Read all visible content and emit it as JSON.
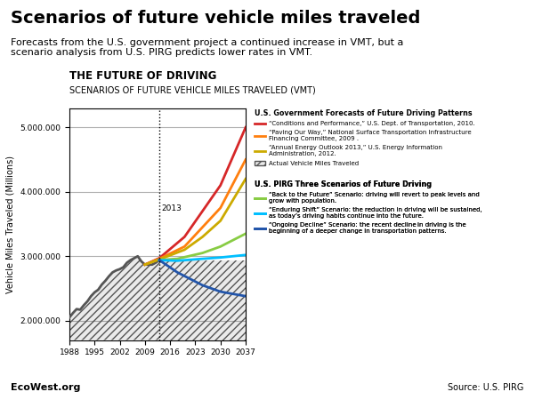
{
  "chart_data": {
    "type": "line",
    "title": "Scenarios of future vehicle miles traveled",
    "subtitle": "Forecasts from the U.S. government project a continued increase in VMT, but a\nscenario analysis from U.S. PIRG predicts lower rates in VMT.",
    "chart_title": "THE FUTURE OF DRIVING",
    "chart_subtitle": "SCENARIOS OF FUTURE VEHICLE MILES TRAVELED (VMT)",
    "y_label": "Vehicle Miles Traveled (Millions)",
    "footer_left": "EcoWest.org",
    "footer_right": "Source: U.S. PIRG",
    "xlim": [
      1988,
      2037
    ],
    "xticks": [
      1988,
      1995,
      2002,
      2009,
      2016,
      2023,
      2030,
      2037
    ],
    "ylim": [
      1700000,
      5300000
    ],
    "yticks": [
      {
        "value": 2000000,
        "label": "2.000.000"
      },
      {
        "value": 3000000,
        "label": "3.000.000"
      },
      {
        "value": 4000000,
        "label": "4.000.000"
      },
      {
        "value": 5000000,
        "label": "5.000.000"
      }
    ],
    "grid": "y",
    "series": [
      {
        "name": "Actual Vehicle Miles Traveled",
        "type": "area",
        "color": "#555555",
        "line_style": "solid",
        "x": [
          1988,
          1989,
          1990,
          1991,
          1992,
          1993,
          1994,
          1995,
          1996,
          1997,
          1998,
          1999,
          2000,
          2001,
          2002,
          2003,
          2004,
          2005,
          2006,
          2007,
          2008,
          2009,
          2010,
          2011,
          2012,
          2013
        ],
        "values": [
          2050000,
          2120000,
          2180000,
          2170000,
          2240000,
          2300000,
          2380000,
          2440000,
          2480000,
          2560000,
          2620000,
          2690000,
          2750000,
          2780000,
          2800000,
          2830000,
          2900000,
          2940000,
          2970000,
          3000000,
          2920000,
          2870000,
          2870000,
          2870000,
          2900000,
          2940000
        ]
      },
      {
        "type": "area",
        "color": "#555555",
        "line_style": "none",
        "x": [
          2013,
          2037
        ],
        "values": [
          2940000,
          2940000
        ]
      },
      {
        "name": "“Conditions and Performance,” U.S. Dept. of Transportation, 2010.",
        "type": "line",
        "color": "#d62728",
        "line_style": "solid",
        "x": [
          2009,
          2013,
          2020,
          2025,
          2030,
          2037
        ],
        "values": [
          2870000,
          2970000,
          3300000,
          3700000,
          4100000,
          5000000
        ]
      },
      {
        "name": "“Paving Our Way,” National Surface Transportation Infrastructure\nFinancing Committee, 2009 .",
        "type": "line",
        "color": "#ff7f0e",
        "line_style": "solid",
        "x": [
          2009,
          2013,
          2020,
          2025,
          2030,
          2037
        ],
        "values": [
          2870000,
          2960000,
          3150000,
          3450000,
          3750000,
          4500000
        ]
      },
      {
        "name": "“Annual Energy Outlook 2013,” U.S. Energy Information\nAdministration, 2012.",
        "type": "line",
        "color": "#ccaa00",
        "line_style": "solid",
        "x": [
          2009,
          2013,
          2020,
          2025,
          2030,
          2037
        ],
        "values": [
          2870000,
          2950000,
          3100000,
          3300000,
          3550000,
          4200000
        ]
      },
      {
        "name": "“Back to the Future” Scenario: driving will revert to peak levels and\ngrow with population.",
        "type": "line",
        "color": "#88cc44",
        "line_style": "solid",
        "x": [
          2013,
          2018,
          2025,
          2030,
          2037
        ],
        "values": [
          2940000,
          2960000,
          3050000,
          3150000,
          3350000
        ]
      },
      {
        "name": "“Enduring Shift” Scenario: the reduction in driving will be sustained,\nas today’s driving habits continue into the future.",
        "type": "line",
        "color": "#00bfff",
        "line_style": "solid",
        "x": [
          2013,
          2018,
          2025,
          2030,
          2037
        ],
        "values": [
          2940000,
          2930000,
          2960000,
          2980000,
          3020000
        ]
      },
      {
        "name": "“Ongoing Decline” Scenario: the recent decline in driving is the\nbeginning of a deeper change in transportation patterns.",
        "type": "line",
        "color": "#2255aa",
        "line_style": "solid",
        "x": [
          2013,
          2018,
          2025,
          2030,
          2037
        ],
        "values": [
          2940000,
          2750000,
          2550000,
          2450000,
          2380000
        ]
      }
    ],
    "legend_sections": [
      {
        "title": "U.S. Government Forecasts of Future Driving Patterns",
        "series": [
          "“Conditions and Performance,” U.S. Dept. of Transportation, 2010.",
          "“Paving Our Way,” National Surface Transportation Infrastructure\nFinancing Committee, 2009 .",
          "“Annual Energy Outlook 2013,” U.S. Energy Information\nAdministration, 2012.",
          "Actual Vehicle Miles Traveled"
        ]
      },
      {
        "title": "U.S. PIRG Three Scenarios of Future Driving",
        "series": [
          "“Back to the Future” Scenario: driving will revert to peak levels and\ngrow with population.",
          "“Enduring Shift” Scenario: the reduction in driving will be sustained,\nas today’s driving habits continue into the future.",
          "“Ongoing Decline” Scenario: the recent decline in driving is the\nbeginning of a deeper change in transportation patterns."
        ]
      }
    ],
    "annotations": [
      {
        "x": 2013,
        "text": "2013"
      }
    ]
  }
}
